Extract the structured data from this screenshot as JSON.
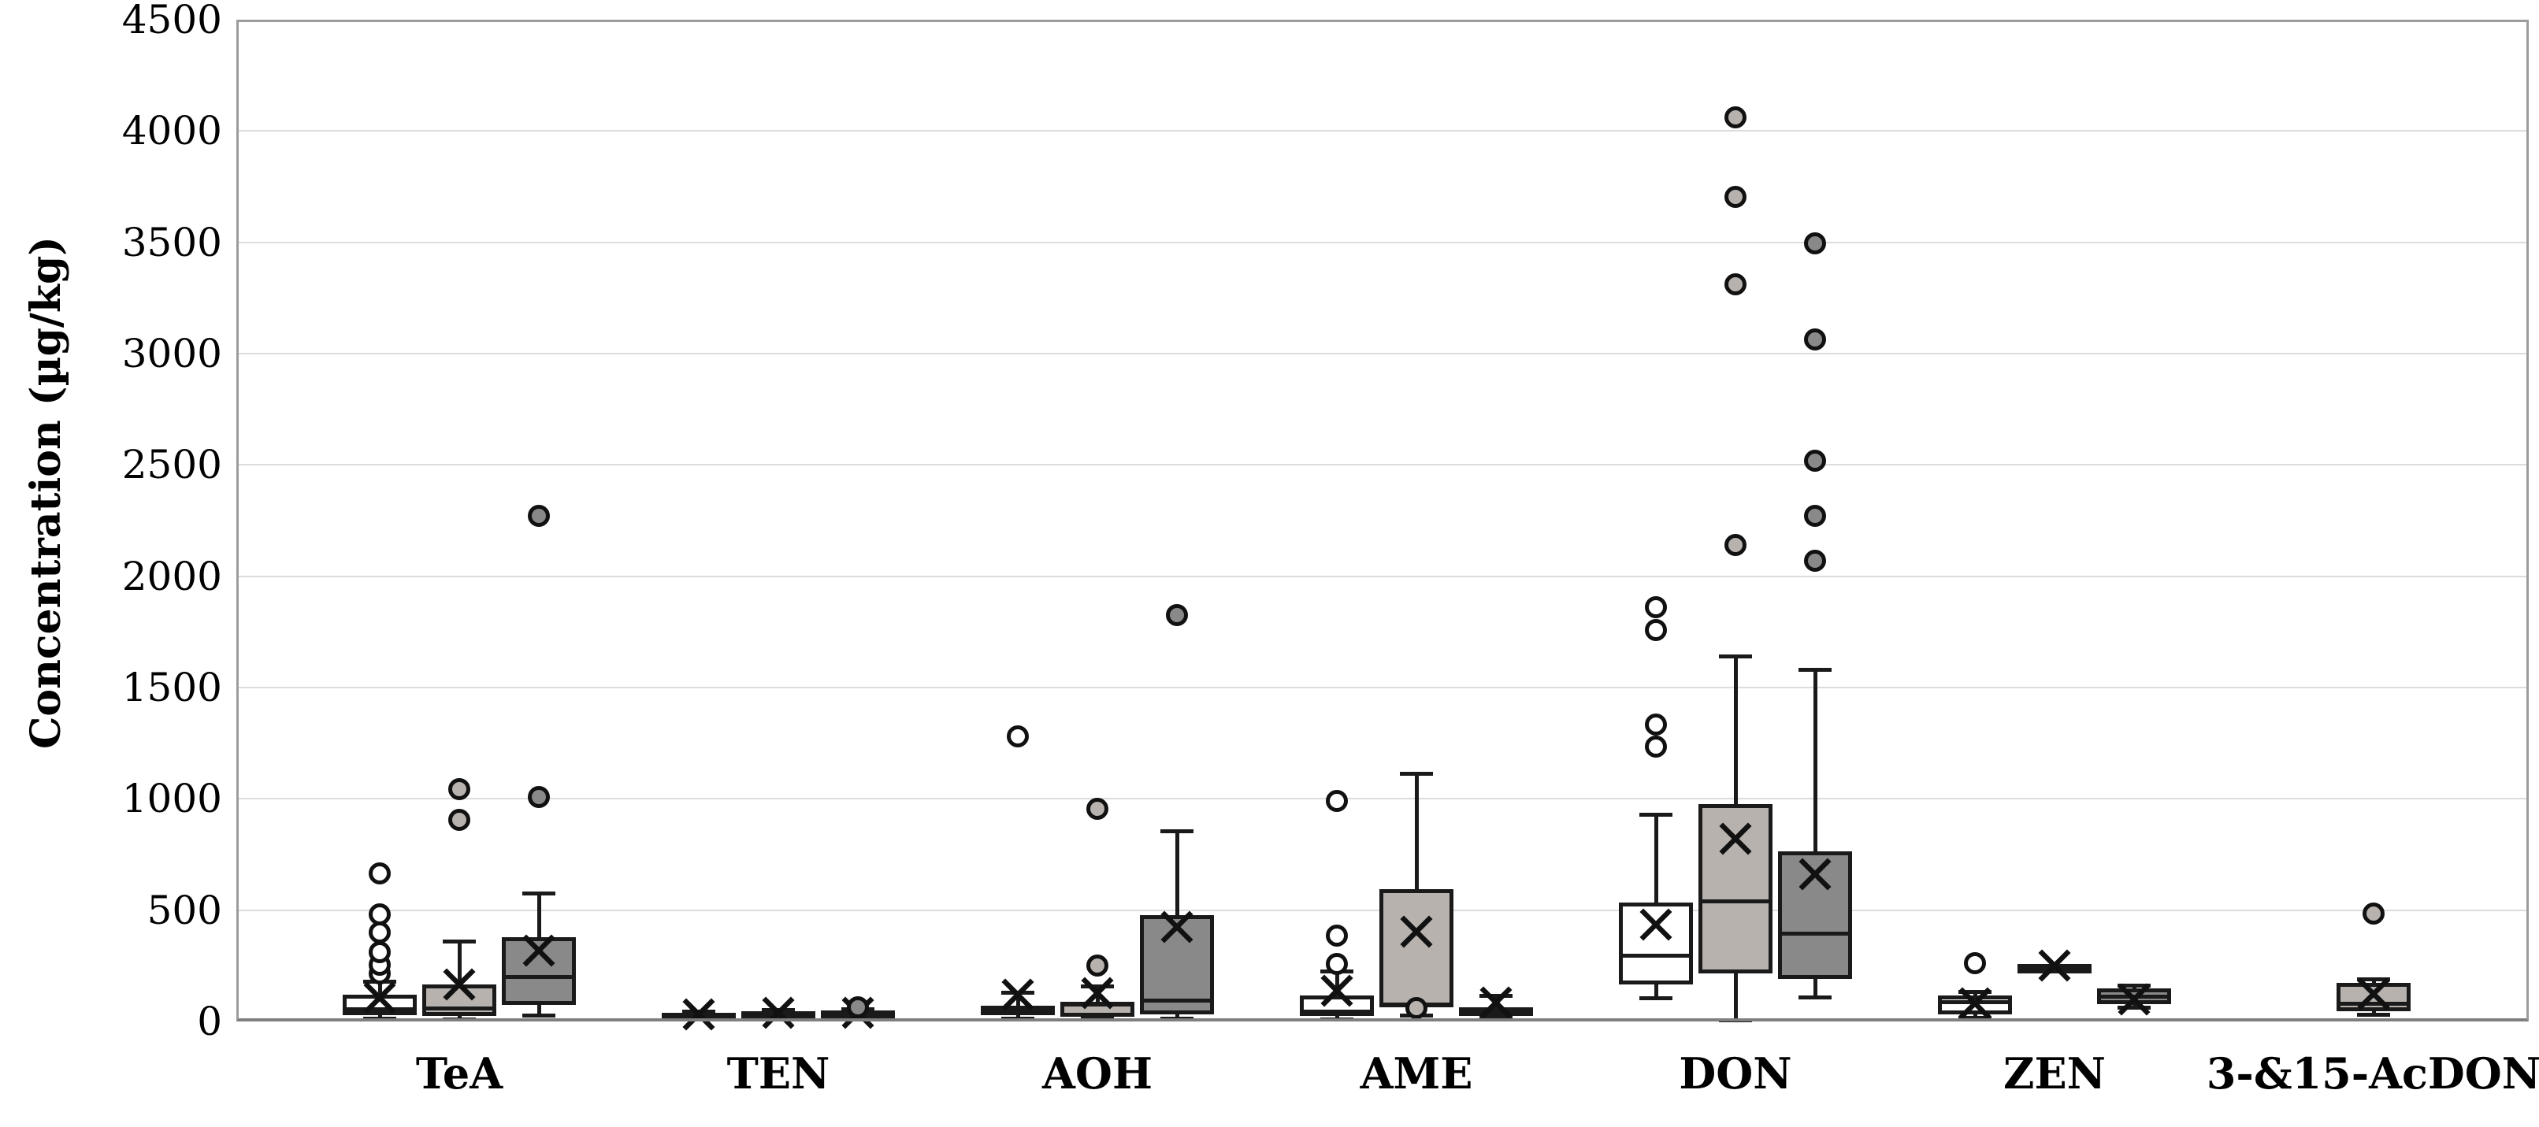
{
  "figure": {
    "type_label": "grouped-box-plot"
  },
  "chart_data": {
    "type": "box",
    "title": "",
    "xlabel": "",
    "ylabel": "Concentration (µg/kg)",
    "ylim": [
      0,
      4500
    ],
    "ytick_step": 500,
    "yticks": [
      0,
      500,
      1000,
      1500,
      2000,
      2500,
      3000,
      3500,
      4000,
      4500
    ],
    "grid": "horizontal-light",
    "legend": "none-shown",
    "categories": [
      "TeA",
      "TEN",
      "AOH",
      "AME",
      "DON",
      "ZEN",
      "3-&15-AcDON"
    ],
    "series_fills": [
      "#ffffff",
      "#b7b2ae",
      "#898989"
    ],
    "colors": {
      "stroke": "#1a1a1a",
      "gridline": "#dcdcdc",
      "frame": "#9c9c9c",
      "axis_bottom": "#7f7f7f",
      "background": "#ffffff"
    },
    "boxes": [
      {
        "category": "TeA",
        "slot": 0,
        "whisker_low": 10,
        "q1": 30,
        "median": 55,
        "q3": 120,
        "whisker_high": 180,
        "mean": 105,
        "outliers": [
          215,
          255,
          310,
          400,
          480,
          665
        ]
      },
      {
        "category": "TeA",
        "slot": 1,
        "whisker_low": 8,
        "q1": 25,
        "median": 60,
        "q3": 165,
        "whisker_high": 360,
        "mean": 165,
        "outliers": [
          905,
          1045
        ]
      },
      {
        "category": "TeA",
        "slot": 2,
        "whisker_low": 25,
        "q1": 75,
        "median": 200,
        "q3": 380,
        "whisker_high": 575,
        "mean": 320,
        "outliers": [
          1010,
          2270
        ]
      },
      {
        "category": "TEN",
        "slot": 0,
        "whisker_low": 12,
        "q1": 20,
        "median": 28,
        "q3": 38,
        "whisker_high": 46,
        "mean": 33,
        "outliers": []
      },
      {
        "category": "TEN",
        "slot": 1,
        "whisker_low": 15,
        "q1": 25,
        "median": 35,
        "q3": 45,
        "whisker_high": 52,
        "mean": 40,
        "outliers": []
      },
      {
        "category": "TEN",
        "slot": 2,
        "whisker_low": 15,
        "q1": 25,
        "median": 35,
        "q3": 48,
        "whisker_high": 56,
        "mean": 40,
        "outliers": [
          65
        ]
      },
      {
        "category": "AOH",
        "slot": 0,
        "whisker_low": 12,
        "q1": 28,
        "median": 55,
        "q3": 72,
        "whisker_high": 130,
        "mean": 122,
        "outliers": [
          1280
        ]
      },
      {
        "category": "AOH",
        "slot": 1,
        "whisker_low": 10,
        "q1": 22,
        "median": 75,
        "q3": 88,
        "whisker_high": 160,
        "mean": 126,
        "outliers": [
          250,
          955
        ]
      },
      {
        "category": "AOH",
        "slot": 2,
        "whisker_low": 10,
        "q1": 32,
        "median": 95,
        "q3": 478,
        "whisker_high": 855,
        "mean": 425,
        "outliers": [
          1825
        ]
      },
      {
        "category": "AME",
        "slot": 0,
        "whisker_low": 8,
        "q1": 25,
        "median": 45,
        "q3": 115,
        "whisker_high": 225,
        "mean": 138,
        "outliers": [
          260,
          385,
          990
        ]
      },
      {
        "category": "AME",
        "slot": 1,
        "whisker_low": 25,
        "q1": 62,
        "median": 75,
        "q3": 595,
        "whisker_high": 1115,
        "mean": 405,
        "outliers": [
          60
        ]
      },
      {
        "category": "AME",
        "slot": 2,
        "whisker_low": 15,
        "q1": 25,
        "median": 42,
        "q3": 62,
        "whisker_high": 115,
        "mean": 84,
        "outliers": []
      },
      {
        "category": "DON",
        "slot": 0,
        "whisker_low": 103,
        "q1": 165,
        "median": 295,
        "q3": 533,
        "whisker_high": 930,
        "mean": 435,
        "outliers": [
          1235,
          1335,
          1760,
          1860
        ]
      },
      {
        "category": "DON",
        "slot": 1,
        "whisker_low": 5,
        "q1": 215,
        "median": 540,
        "q3": 975,
        "whisker_high": 1640,
        "mean": 820,
        "outliers": [
          2140,
          3310,
          3705,
          4060
        ]
      },
      {
        "category": "DON",
        "slot": 2,
        "whisker_low": 105,
        "q1": 190,
        "median": 395,
        "q3": 765,
        "whisker_high": 1580,
        "mean": 660,
        "outliers": [
          2070,
          2270,
          2520,
          3065,
          3495
        ]
      },
      {
        "category": "ZEN",
        "slot": 0,
        "whisker_low": 15,
        "q1": 32,
        "median": 85,
        "q3": 115,
        "whisker_high": 135,
        "mean": 80,
        "outliers": [
          262
        ]
      },
      {
        "category": "ZEN",
        "slot": 1,
        "whisker_low": 250,
        "q1": 250,
        "median": 250,
        "q3": 250,
        "whisker_high": 250,
        "mean": 250,
        "outliers": []
      },
      {
        "category": "ZEN",
        "slot": 2,
        "whisker_low": 60,
        "q1": 77,
        "median": 110,
        "q3": 148,
        "whisker_high": 162,
        "mean": 100,
        "outliers": []
      },
      {
        "category": "3-&15-AcDON",
        "slot": 1,
        "whisker_low": 30,
        "q1": 47,
        "median": 78,
        "q3": 172,
        "whisker_high": 190,
        "mean": 125,
        "outliers": [
          483
        ]
      }
    ]
  }
}
